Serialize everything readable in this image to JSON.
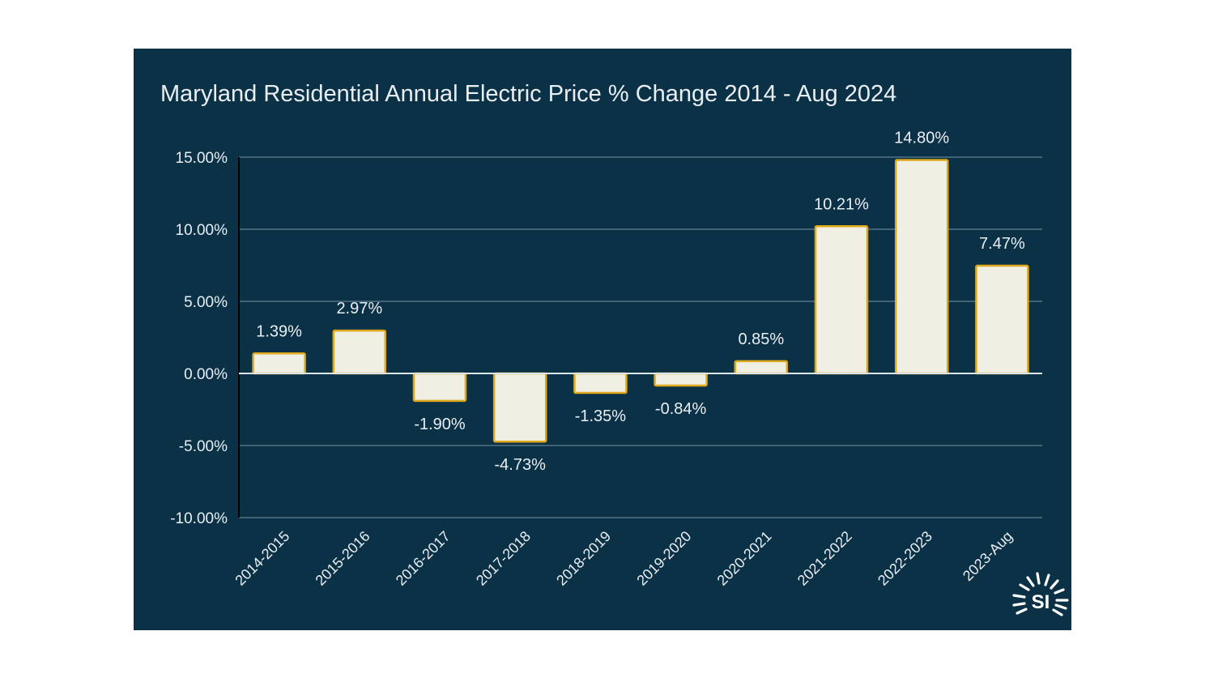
{
  "chart_data": {
    "type": "bar",
    "title": "Maryland Residential Annual Electric Price % Change 2014 - Aug 2024",
    "xlabel": "",
    "ylabel": "",
    "categories": [
      "2014-2015",
      "2015-2016",
      "2016-2017",
      "2017-2018",
      "2018-2019",
      "2019-2020",
      "2020-2021",
      "2021-2022",
      "2022-2023",
      "2023-Aug"
    ],
    "values": [
      1.39,
      2.97,
      -1.9,
      -4.73,
      -1.35,
      -0.84,
      0.85,
      10.21,
      14.8,
      7.47
    ],
    "data_labels": [
      "1.39%",
      "2.97%",
      "-1.90%",
      "-4.73%",
      "-1.35%",
      "-0.84%",
      "0.85%",
      "10.21%",
      "14.80%",
      "7.47%"
    ],
    "ylim": [
      -10,
      15
    ],
    "y_ticks": [
      -10,
      -5,
      0,
      5,
      10,
      15
    ],
    "y_tick_labels": [
      "-10.00%",
      "-5.00%",
      "0.00%",
      "5.00%",
      "10.00%",
      "15.00%"
    ],
    "grid": true,
    "legend": "none"
  },
  "colors": {
    "background": "#0b3147",
    "bar_fill": "#efefe3",
    "bar_stroke": "#e0a81c",
    "text": "#e9eef2",
    "grid": "#5f7f91",
    "axis": "#000000",
    "zero_line": "#dde6ec",
    "logo": "#ffffff"
  },
  "logo": {
    "text": "SI",
    "icon": "sunburst-logo-icon"
  }
}
